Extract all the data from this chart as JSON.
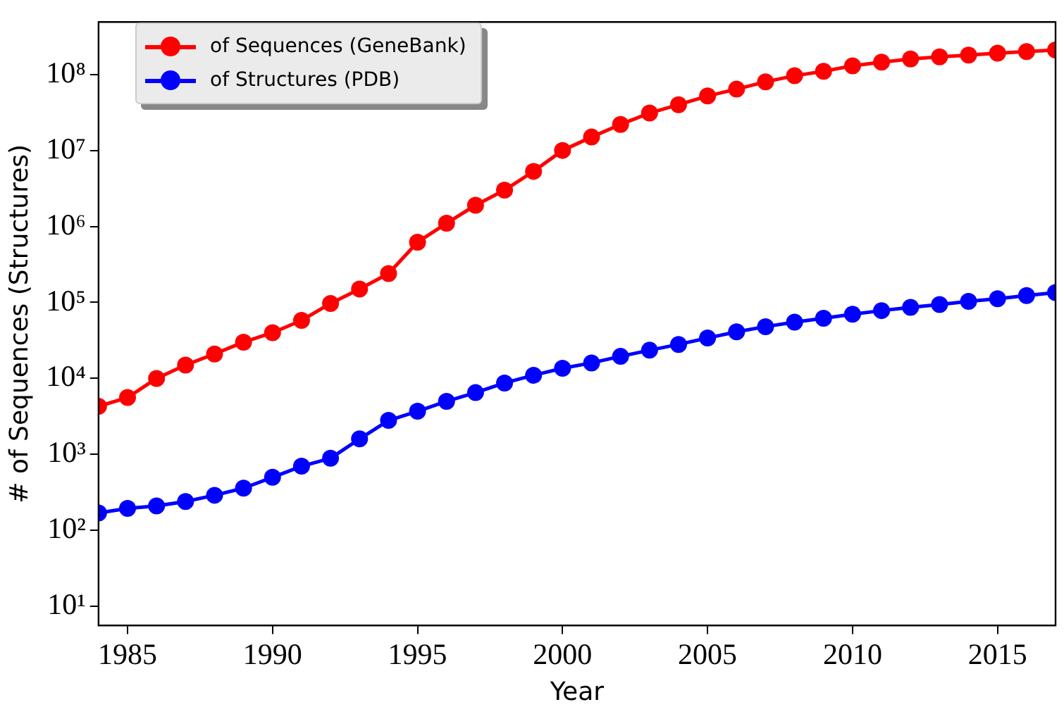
{
  "chart_data": {
    "type": "line",
    "xlabel": "Year",
    "ylabel": "# of Sequences (Structures)",
    "log": "y",
    "grid": false,
    "legend": "top left",
    "marker": "circle",
    "line_style": "solid",
    "x": [
      1984,
      1985,
      1986,
      1987,
      1988,
      1989,
      1990,
      1991,
      1992,
      1993,
      1994,
      1995,
      1996,
      1997,
      1998,
      1999,
      2000,
      2001,
      2002,
      2003,
      2004,
      2005,
      2006,
      2007,
      2008,
      2009,
      2010,
      2011,
      2012,
      2013,
      2014,
      2015,
      2016,
      2017
    ],
    "xlim": [
      1984,
      2017
    ],
    "xticks": [
      1985,
      1990,
      1995,
      2000,
      2005,
      2010,
      2015
    ],
    "ylim": [
      5.6,
      490000000
    ],
    "yticks": [
      {
        "value": 10,
        "label": "10¹"
      },
      {
        "value": 100,
        "label": "10²"
      },
      {
        "value": 1000,
        "label": "10³"
      },
      {
        "value": 10000,
        "label": "10⁴"
      },
      {
        "value": 100000,
        "label": "10⁵"
      },
      {
        "value": 1000000,
        "label": "10⁶"
      },
      {
        "value": 10000000,
        "label": "10⁷"
      },
      {
        "value": 100000000,
        "label": "10⁸"
      }
    ],
    "series": [
      {
        "name": "of Sequences (GeneBank)",
        "color": "#ff0000",
        "values": [
          4300,
          5600,
          10000,
          15000,
          21000,
          30000,
          40000,
          58000,
          97000,
          150000,
          240000,
          620000,
          1100000,
          1900000,
          3000000,
          5300000,
          10000000,
          15000000,
          22000000,
          31000000,
          40000000,
          52000000,
          64000000,
          80000000,
          96000000,
          110000000,
          130000000,
          145000000,
          160000000,
          170000000,
          180000000,
          190000000,
          200000000,
          210000000
        ]
      },
      {
        "name": "of Structures (PDB)",
        "color": "#0000ff",
        "values": [
          170,
          195,
          210,
          240,
          290,
          360,
          500,
          700,
          890,
          1600,
          2800,
          3700,
          5000,
          6500,
          8700,
          11000,
          13600,
          16000,
          19500,
          23500,
          28000,
          34000,
          41000,
          48000,
          55000,
          62000,
          70000,
          78000,
          86000,
          94000,
          103000,
          112000,
          123000,
          135000
        ]
      }
    ]
  }
}
